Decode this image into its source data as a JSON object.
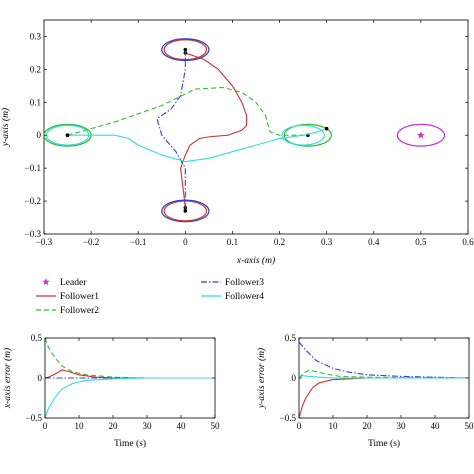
{
  "chart_data": [
    {
      "type": "line",
      "title": "",
      "xlabel": "x-axis (m)",
      "ylabel": "y-axis (m)",
      "xlim": [
        -0.3,
        0.6
      ],
      "ylim": [
        -0.3,
        0.35
      ],
      "xticks": [
        "−0.3",
        "−0.2",
        "−0.1",
        "0",
        "0.1",
        "0.2",
        "0.3",
        "0.4",
        "0.5",
        "0.6"
      ],
      "yticks": [
        "−0.3",
        "−0.2",
        "−0.1",
        "0",
        "0.1",
        "0.2",
        "0.3"
      ],
      "grid": false,
      "series": [
        {
          "name": "Leader",
          "color": "#cc33cc",
          "style": "star",
          "x": [
            0.5
          ],
          "y": [
            0.0
          ],
          "ellipses": [
            {
              "cx": 0.5,
              "cy": 0.0,
              "rx": 0.05,
              "ry": 0.033
            }
          ]
        },
        {
          "name": "Follower1",
          "color": "#cc3333",
          "style": "solid",
          "x": [
            0.0,
            0.04,
            0.07,
            0.1,
            0.12,
            0.13,
            0.13,
            0.12,
            0.09,
            0.05,
            0.03,
            0.01,
            0.0,
            -0.01,
            -0.005,
            0.0
          ],
          "y": [
            0.25,
            0.23,
            0.2,
            0.15,
            0.1,
            0.06,
            0.03,
            0.015,
            0.0,
            -0.005,
            -0.01,
            -0.03,
            -0.06,
            -0.1,
            -0.16,
            -0.22
          ],
          "ellipses": [
            {
              "cx": 0.0,
              "cy": 0.26,
              "rx": 0.045,
              "ry": 0.03
            },
            {
              "cx": 0.0,
              "cy": -0.23,
              "rx": 0.045,
              "ry": 0.03
            }
          ]
        },
        {
          "name": "Follower2",
          "color": "#33bb33",
          "style": "dashed",
          "x": [
            -0.25,
            -0.15,
            -0.05,
            0.02,
            0.08,
            0.12,
            0.15,
            0.17,
            0.18,
            0.2,
            0.26
          ],
          "y": [
            0.0,
            0.04,
            0.09,
            0.14,
            0.145,
            0.13,
            0.1,
            0.06,
            0.01,
            0.0,
            0.0
          ],
          "ellipses": [
            {
              "cx": -0.25,
              "cy": 0.0,
              "rx": 0.05,
              "ry": 0.033
            },
            {
              "cx": 0.26,
              "cy": 0.0,
              "rx": 0.05,
              "ry": 0.033
            }
          ]
        },
        {
          "name": "Follower3",
          "color": "#3344cc",
          "style": "dashdot",
          "x": [
            0.0,
            0.0,
            -0.01,
            -0.03,
            -0.06,
            -0.05,
            -0.02,
            0.0,
            0.0,
            0.0
          ],
          "y": [
            0.26,
            0.2,
            0.12,
            0.08,
            0.05,
            0.0,
            -0.05,
            -0.1,
            -0.16,
            -0.23
          ],
          "ellipses": [
            {
              "cx": 0.0,
              "cy": 0.26,
              "rx": 0.05,
              "ry": 0.033
            },
            {
              "cx": 0.0,
              "cy": -0.23,
              "rx": 0.05,
              "ry": 0.033
            }
          ]
        },
        {
          "name": "Follower4",
          "color": "#33dddd",
          "style": "solid",
          "x": [
            -0.25,
            -0.15,
            -0.12,
            -0.1,
            -0.05,
            0.0,
            0.05,
            0.1,
            0.15,
            0.2,
            0.25,
            0.28,
            0.3
          ],
          "y": [
            0.0,
            0.0,
            -0.01,
            -0.03,
            -0.06,
            -0.08,
            -0.07,
            -0.05,
            -0.03,
            -0.01,
            0.0,
            0.01,
            0.02
          ],
          "ellipses": [
            {
              "cx": -0.25,
              "cy": 0.0,
              "rx": 0.045,
              "ry": 0.03
            },
            {
              "cx": 0.25,
              "cy": 0.0,
              "rx": 0.045,
              "ry": 0.03
            }
          ]
        }
      ]
    },
    {
      "type": "line",
      "title": "",
      "xlabel": "Time (s)",
      "ylabel": "x-axis error (m)",
      "xlim": [
        0,
        50
      ],
      "ylim": [
        -0.5,
        0.5
      ],
      "xticks": [
        "0",
        "10",
        "20",
        "30",
        "40",
        "50"
      ],
      "yticks": [
        "−0.5",
        "0",
        "0.5"
      ],
      "grid": false,
      "series": [
        {
          "name": "Follower1",
          "x": [
            0,
            1,
            3,
            5,
            7,
            10,
            15,
            20,
            50
          ],
          "y": [
            0,
            0.01,
            0.05,
            0.1,
            0.08,
            0.04,
            0.01,
            0.0,
            0.0
          ]
        },
        {
          "name": "Follower2",
          "x": [
            0,
            1,
            3,
            5,
            8,
            12,
            20,
            30,
            50
          ],
          "y": [
            0.5,
            0.38,
            0.25,
            0.15,
            0.08,
            0.04,
            0.01,
            0.0,
            0.0
          ]
        },
        {
          "name": "Follower3",
          "x": [
            0,
            2,
            5,
            10,
            20,
            50
          ],
          "y": [
            0,
            0.0,
            0.0,
            0.0,
            0.0,
            0.0
          ]
        },
        {
          "name": "Follower4",
          "x": [
            0,
            1,
            3,
            5,
            8,
            12,
            20,
            30,
            50
          ],
          "y": [
            -0.5,
            -0.38,
            -0.24,
            -0.14,
            -0.07,
            -0.03,
            -0.01,
            0.0,
            0.0
          ]
        }
      ]
    },
    {
      "type": "line",
      "title": "",
      "xlabel": "Time (s)",
      "ylabel": "y-axis error (m)",
      "xlim": [
        0,
        50
      ],
      "ylim": [
        -0.5,
        0.5
      ],
      "xticks": [
        "0",
        "10",
        "20",
        "30",
        "40",
        "50"
      ],
      "yticks": [
        "−0.5",
        "0",
        "0.5"
      ],
      "grid": false,
      "series": [
        {
          "name": "Follower1",
          "x": [
            0,
            1,
            2,
            4,
            6,
            10,
            15,
            20,
            50
          ],
          "y": [
            -0.5,
            -0.35,
            -0.25,
            -0.12,
            -0.06,
            -0.02,
            -0.01,
            0.0,
            0.0
          ]
        },
        {
          "name": "Follower2",
          "x": [
            0,
            1,
            3,
            5,
            8,
            12,
            20,
            50
          ],
          "y": [
            0,
            0.05,
            0.1,
            0.08,
            0.05,
            0.02,
            0.01,
            0.0
          ]
        },
        {
          "name": "Follower3",
          "x": [
            0,
            2,
            5,
            10,
            15,
            20,
            30,
            40,
            50
          ],
          "y": [
            0.45,
            0.35,
            0.22,
            0.12,
            0.07,
            0.04,
            0.02,
            0.01,
            0.0
          ]
        },
        {
          "name": "Follower4",
          "x": [
            0,
            1,
            3,
            6,
            10,
            20,
            50
          ],
          "y": [
            0,
            0.03,
            0.02,
            0.01,
            0.0,
            0.0,
            0.0
          ]
        }
      ]
    }
  ],
  "legend": {
    "items": [
      {
        "label": "Leader",
        "color": "#cc33cc",
        "style": "star"
      },
      {
        "label": "Follower1",
        "color": "#cc3333",
        "style": "solid"
      },
      {
        "label": "Follower2",
        "color": "#33bb33",
        "style": "dashed"
      },
      {
        "label": "Follower3",
        "color": "#3344cc",
        "style": "dashdot"
      },
      {
        "label": "Follower4",
        "color": "#33dddd",
        "style": "solid"
      }
    ]
  }
}
